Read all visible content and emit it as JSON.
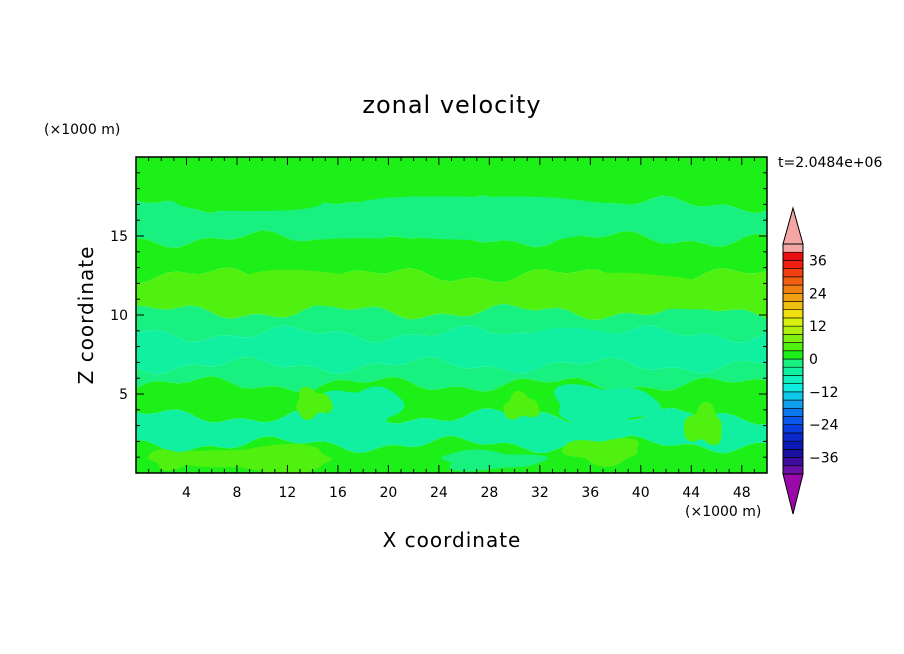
{
  "chart_data": {
    "type": "heatmap",
    "title": "zonal velocity",
    "xlabel": "X coordinate",
    "ylabel": "Z coordinate",
    "x_unit": "(×1000 m)",
    "y_unit": "(×1000 m)",
    "time_label": "t=2.0484e+06",
    "xlim": [
      0,
      50
    ],
    "ylim": [
      0,
      20
    ],
    "x_ticks": [
      4,
      8,
      12,
      16,
      20,
      24,
      28,
      32,
      36,
      40,
      44,
      48
    ],
    "x_tick_labels": [
      "4",
      "8",
      "12",
      "16",
      "20",
      "24",
      "28",
      "32",
      "36",
      "40",
      "44",
      "48"
    ],
    "y_ticks": [
      5,
      10,
      15
    ],
    "y_tick_labels": [
      "5",
      "10",
      "15"
    ],
    "colorbar": {
      "levels": [
        -42,
        -39,
        -36,
        -33,
        -30,
        -27,
        -24,
        -21,
        -18,
        -15,
        -12,
        -9,
        -6,
        -3,
        0,
        3,
        6,
        9,
        12,
        15,
        18,
        21,
        24,
        27,
        30,
        33,
        36,
        39,
        42
      ],
      "tick_values": [
        -36,
        -24,
        -12,
        0,
        12,
        24,
        36
      ],
      "tick_labels": [
        "−36",
        "−24",
        "−12",
        "0",
        "12",
        "24",
        "36"
      ],
      "colors": [
        "#6a10a8",
        "#3c0c9c",
        "#1a10a0",
        "#0c18b4",
        "#0a28cc",
        "#0a3ce0",
        "#0a58ec",
        "#0c78f0",
        "#10a0f0",
        "#10c8ec",
        "#10ece0",
        "#10f0c0",
        "#10f0a0",
        "#18f080",
        "#1cf018",
        "#50f010",
        "#80f010",
        "#b0f010",
        "#d8f010",
        "#f0e010",
        "#f0c010",
        "#f0a010",
        "#f08010",
        "#f06010",
        "#f04010",
        "#f02010",
        "#e81010",
        "#f4a6a6"
      ],
      "under_color": "#9a0aaa",
      "over_color": "#f4a6a6"
    },
    "bands": [
      {
        "z_top": 20.0,
        "z_bottom": 17.0,
        "value": 2
      },
      {
        "z_top": 17.0,
        "z_bottom": 14.8,
        "value": -2
      },
      {
        "z_top": 14.8,
        "z_bottom": 12.5,
        "value": 2
      },
      {
        "z_top": 12.5,
        "z_bottom": 10.2,
        "value": 5
      },
      {
        "z_top": 10.2,
        "z_bottom": 8.8,
        "value": -2
      },
      {
        "z_top": 8.8,
        "z_bottom": 6.8,
        "value": -6
      },
      {
        "z_top": 6.8,
        "z_bottom": 5.6,
        "value": -2
      },
      {
        "z_top": 5.6,
        "z_bottom": 3.6,
        "value": 2
      },
      {
        "z_top": 3.6,
        "z_bottom": 1.8,
        "value": -5
      },
      {
        "z_top": 1.8,
        "z_bottom": 0.0,
        "value": 2
      }
    ],
    "patches": [
      {
        "x": 9,
        "z": 18.2,
        "rx": 9,
        "rz": 1.5,
        "value": 2
      },
      {
        "x": 30,
        "z": 16.2,
        "rx": 12,
        "rz": 1.4,
        "value": -2
      },
      {
        "x": 22,
        "z": 13.9,
        "rx": 10,
        "rz": 0.9,
        "value": 2
      },
      {
        "x": 40,
        "z": 11.3,
        "rx": 7,
        "rz": 1.2,
        "value": 5
      },
      {
        "x": 12,
        "z": 11.6,
        "rx": 8,
        "rz": 1.1,
        "value": 5
      },
      {
        "x": 33,
        "z": 8.2,
        "rx": 6,
        "rz": 0.9,
        "value": -6
      },
      {
        "x": 18,
        "z": 4.0,
        "rx": 3,
        "rz": 1.5,
        "value": -5
      },
      {
        "x": 37,
        "z": 4.2,
        "rx": 4,
        "rz": 1.4,
        "value": -5
      },
      {
        "x": 14,
        "z": 4.4,
        "rx": 1.4,
        "rz": 0.9,
        "value": 5
      },
      {
        "x": 30.5,
        "z": 4.2,
        "rx": 1.4,
        "rz": 0.8,
        "value": 5
      },
      {
        "x": 45,
        "z": 3.0,
        "rx": 1.5,
        "rz": 1.2,
        "value": 5
      },
      {
        "x": 10,
        "z": 0.9,
        "rx": 6,
        "rz": 0.8,
        "value": 5
      },
      {
        "x": 37,
        "z": 1.4,
        "rx": 3,
        "rz": 0.8,
        "value": 5
      },
      {
        "x": 3,
        "z": 0.9,
        "rx": 2,
        "rz": 0.6,
        "value": 5
      },
      {
        "x": 28,
        "z": 0.8,
        "rx": 4,
        "rz": 0.6,
        "value": -2
      }
    ]
  }
}
